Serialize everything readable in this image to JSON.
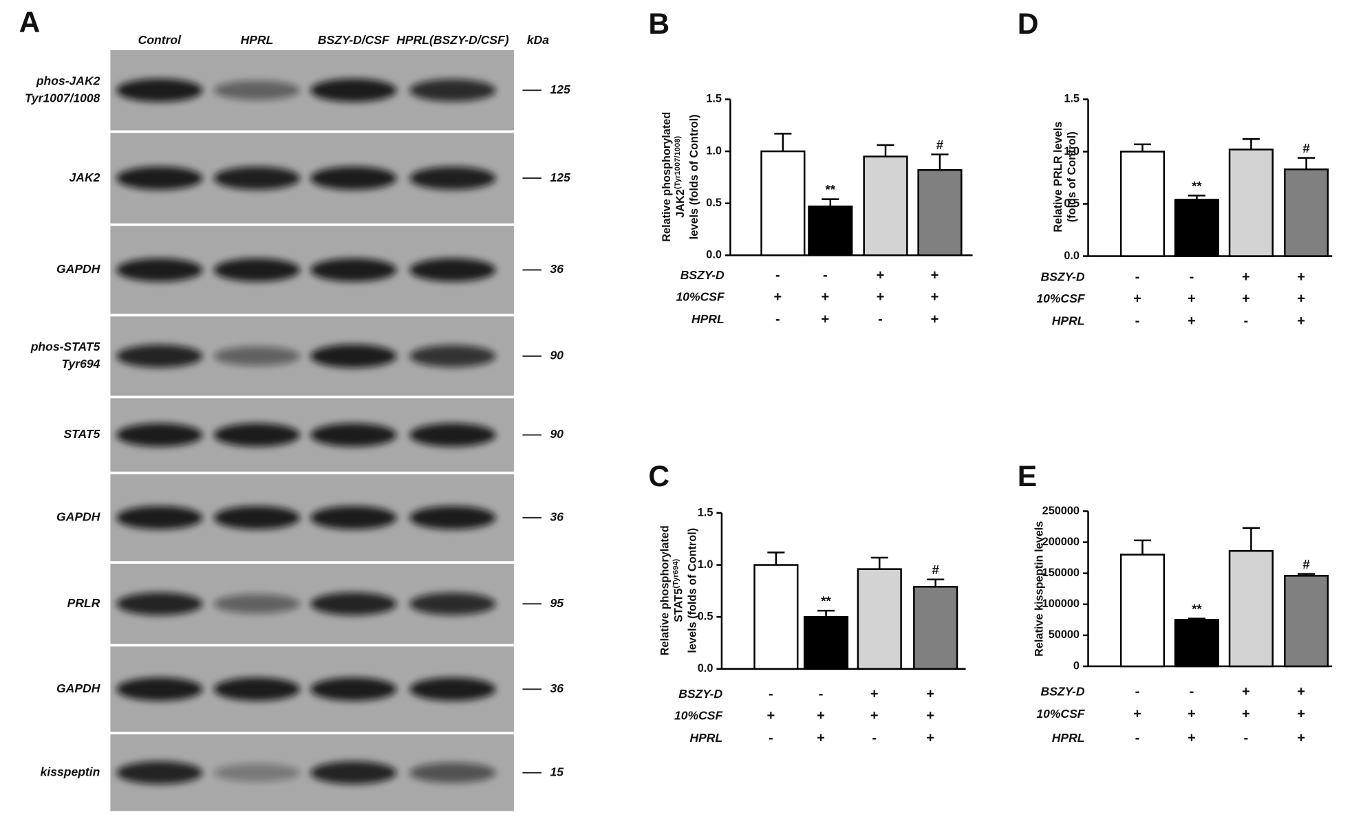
{
  "blot": {
    "panel": "A",
    "lanes": [
      "Control",
      "HPRL",
      "BSZY-D/CSF",
      "HPRL(BSZY-D/CSF)"
    ],
    "kda_header": "kDa",
    "rows": [
      {
        "label": [
          "phos-JAK2",
          "Tyr1007/1008"
        ],
        "kda": 125
      },
      {
        "label": [
          "JAK2"
        ],
        "kda": 125
      },
      {
        "label": [
          "GAPDH"
        ],
        "kda": 36
      },
      {
        "label": [
          "phos-STAT5",
          "Tyr694"
        ],
        "kda": 90
      },
      {
        "label": [
          "STAT5"
        ],
        "kda": 90
      },
      {
        "label": [
          "GAPDH"
        ],
        "kda": 36
      },
      {
        "label": [
          "PRLR"
        ],
        "kda": 95
      },
      {
        "label": [
          "GAPDH"
        ],
        "kda": 36
      },
      {
        "label": [
          "kisspeptin"
        ],
        "kda": 15
      }
    ]
  },
  "chart_data": [
    {
      "type": "bar",
      "panel": "B",
      "y_label": [
        "Relative phosphorylated",
        "JAK2",
        "levels (folds of Control)"
      ],
      "y_label_sub": "(Tyr1007/1008)",
      "categories": [
        null,
        null,
        null,
        null
      ],
      "values": [
        1.0,
        0.47,
        0.95,
        0.82
      ],
      "errors": [
        0.17,
        0.07,
        0.11,
        0.15
      ],
      "colors": [
        "#ffffff",
        "#000000",
        "#d3d3d3",
        "#808080"
      ],
      "annotations": [
        {
          "index": 1,
          "text": "**"
        },
        {
          "index": 3,
          "text": "#"
        }
      ],
      "ylim": [
        0,
        1.5
      ],
      "yticks": [
        {
          "value": 0,
          "label": "0.0"
        },
        {
          "value": 0.5,
          "label": "0.5"
        },
        {
          "value": 1,
          "label": "1.0"
        },
        {
          "value": 1.5,
          "label": "1.5"
        }
      ],
      "conditions": [
        {
          "label": "BSZY-D",
          "marks": [
            "-",
            "-",
            "+",
            "+"
          ]
        },
        {
          "label": "10%CSF",
          "marks": [
            "+",
            "+",
            "+",
            "+"
          ]
        },
        {
          "label": "HPRL",
          "marks": [
            "-",
            "+",
            "-",
            "+"
          ]
        }
      ]
    },
    {
      "type": "bar",
      "panel": "C",
      "y_label": [
        "Relative phosphorylated",
        "STAT5",
        "levels (folds of Control)"
      ],
      "y_label_sub": "(Tyr694)",
      "categories": [
        null,
        null,
        null,
        null
      ],
      "values": [
        1.0,
        0.5,
        0.96,
        0.79
      ],
      "errors": [
        0.12,
        0.06,
        0.11,
        0.07
      ],
      "colors": [
        "#ffffff",
        "#000000",
        "#d3d3d3",
        "#808080"
      ],
      "annotations": [
        {
          "index": 1,
          "text": "**"
        },
        {
          "index": 3,
          "text": "#"
        }
      ],
      "ylim": [
        0,
        1.5
      ],
      "yticks": [
        {
          "value": 0,
          "label": "0.0"
        },
        {
          "value": 0.5,
          "label": "0.5"
        },
        {
          "value": 1,
          "label": "1.0"
        },
        {
          "value": 1.5,
          "label": "1.5"
        }
      ],
      "conditions": [
        {
          "label": "BSZY-D",
          "marks": [
            "-",
            "-",
            "+",
            "+"
          ]
        },
        {
          "label": "10%CSF",
          "marks": [
            "+",
            "+",
            "+",
            "+"
          ]
        },
        {
          "label": "HPRL",
          "marks": [
            "-",
            "+",
            "-",
            "+"
          ]
        }
      ]
    },
    {
      "type": "bar",
      "panel": "D",
      "y_label": [
        "Relative PRLR levels",
        "(folds of Control)"
      ],
      "categories": [
        null,
        null,
        null,
        null
      ],
      "values": [
        1.0,
        0.54,
        1.02,
        0.83
      ],
      "errors": [
        0.07,
        0.04,
        0.1,
        0.11
      ],
      "colors": [
        "#ffffff",
        "#000000",
        "#d3d3d3",
        "#808080"
      ],
      "annotations": [
        {
          "index": 1,
          "text": "**"
        },
        {
          "index": 3,
          "text": "#"
        }
      ],
      "ylim": [
        0,
        1.5
      ],
      "yticks": [
        {
          "value": 0,
          "label": "0.0"
        },
        {
          "value": 0.5,
          "label": "0.5"
        },
        {
          "value": 1,
          "label": "1.0"
        },
        {
          "value": 1.5,
          "label": "1.5"
        }
      ],
      "conditions": [
        {
          "label": "BSZY-D",
          "marks": [
            "-",
            "-",
            "+",
            "+"
          ]
        },
        {
          "label": "10%CSF",
          "marks": [
            "+",
            "+",
            "+",
            "+"
          ]
        },
        {
          "label": "HPRL",
          "marks": [
            "-",
            "+",
            "-",
            "+"
          ]
        }
      ]
    },
    {
      "type": "bar",
      "panel": "E",
      "y_label": [
        "Relative kisspeptin levels"
      ],
      "categories": [
        null,
        null,
        null,
        null
      ],
      "values": [
        180000,
        75000,
        186000,
        146000
      ],
      "errors": [
        23000,
        2000,
        37000,
        3000
      ],
      "colors": [
        "#ffffff",
        "#000000",
        "#d3d3d3",
        "#808080"
      ],
      "annotations": [
        {
          "index": 1,
          "text": "**"
        },
        {
          "index": 3,
          "text": "#"
        }
      ],
      "ylim": [
        0,
        250000
      ],
      "yticks": [
        0,
        50000,
        100000,
        150000,
        200000,
        250000
      ],
      "conditions": [
        {
          "label": "BSZY-D",
          "marks": [
            "-",
            "-",
            "+",
            "+"
          ]
        },
        {
          "label": "10%CSF",
          "marks": [
            "+",
            "+",
            "+",
            "+"
          ]
        },
        {
          "label": "HPRL",
          "marks": [
            "-",
            "+",
            "-",
            "+"
          ]
        }
      ]
    }
  ]
}
